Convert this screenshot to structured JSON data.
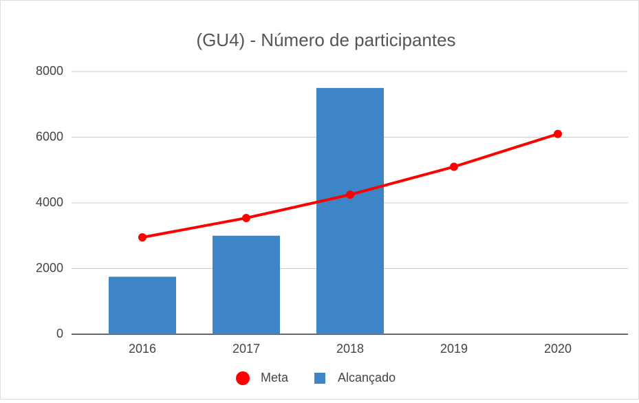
{
  "chart_data": {
    "type": "combo",
    "title": "(GU4) - Número de participantes",
    "categories": [
      "2016",
      "2017",
      "2018",
      "2019",
      "2020"
    ],
    "series": [
      {
        "name": "Meta",
        "type": "line",
        "color": "#ff0000",
        "values": [
          2950,
          3540,
          4250,
          5100,
          6100
        ]
      },
      {
        "name": "Alcançado",
        "type": "bar",
        "color": "#3d85c6",
        "values": [
          1750,
          3000,
          7500,
          null,
          null
        ]
      }
    ],
    "ylim": [
      0,
      8000
    ],
    "yticks": [
      0,
      2000,
      4000,
      6000,
      8000
    ],
    "grid": true,
    "legend": "bottom"
  }
}
